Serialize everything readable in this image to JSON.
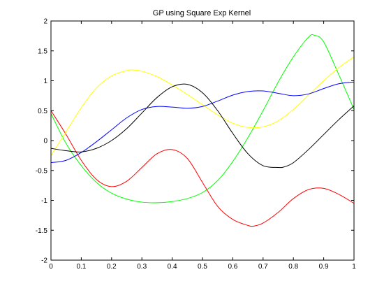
{
  "chart_data": {
    "type": "line",
    "title": "GP using Square Exp Kernel",
    "xlabel": "",
    "ylabel": "",
    "xlim": [
      0,
      1
    ],
    "ylim": [
      -2,
      2
    ],
    "xticks": [
      0,
      0.1,
      0.2,
      0.3,
      0.4,
      0.5,
      0.6,
      0.7,
      0.8,
      0.9,
      1
    ],
    "xtick_labels": [
      "0",
      "0.1",
      "0.2",
      "0.3",
      "0.4",
      "0.5",
      "0.6",
      "0.7",
      "0.8",
      "0.9",
      "1"
    ],
    "yticks": [
      -2,
      -1.5,
      -1,
      -0.5,
      0,
      0.5,
      1,
      1.5,
      2
    ],
    "ytick_labels": [
      "-2",
      "-1.5",
      "-1",
      "-0.5",
      "0",
      "0.5",
      "1",
      "1.5",
      "2"
    ],
    "grid": false,
    "legend": "none",
    "series": [
      {
        "color": "#00ff00",
        "x": [
          0,
          0.05,
          0.1,
          0.15,
          0.2,
          0.25,
          0.3,
          0.35,
          0.4,
          0.45,
          0.5,
          0.55,
          0.6,
          0.65,
          0.7,
          0.75,
          0.8,
          0.85,
          0.87,
          0.9,
          0.95,
          1
        ],
        "y": [
          0.45,
          -0.05,
          -0.42,
          -0.7,
          -0.88,
          -0.98,
          -1.03,
          -1.04,
          -1.02,
          -0.97,
          -0.87,
          -0.67,
          -0.35,
          0.05,
          0.5,
          0.98,
          1.4,
          1.73,
          1.76,
          1.65,
          1.1,
          0.52
        ]
      },
      {
        "color": "#ff0000",
        "x": [
          0,
          0.05,
          0.1,
          0.15,
          0.2,
          0.25,
          0.3,
          0.35,
          0.4,
          0.45,
          0.5,
          0.55,
          0.6,
          0.65,
          0.67,
          0.7,
          0.75,
          0.8,
          0.85,
          0.9,
          0.95,
          1
        ],
        "y": [
          0.5,
          0.1,
          -0.33,
          -0.65,
          -0.77,
          -0.68,
          -0.45,
          -0.22,
          -0.15,
          -0.3,
          -0.7,
          -1.1,
          -1.32,
          -1.42,
          -1.43,
          -1.38,
          -1.2,
          -0.97,
          -0.82,
          -0.8,
          -0.9,
          -1.05
        ]
      },
      {
        "color": "#ffff00",
        "x": [
          0,
          0.05,
          0.1,
          0.15,
          0.2,
          0.25,
          0.27,
          0.3,
          0.35,
          0.4,
          0.45,
          0.5,
          0.55,
          0.6,
          0.65,
          0.7,
          0.75,
          0.8,
          0.85,
          0.9,
          0.95,
          1
        ],
        "y": [
          -0.25,
          0.15,
          0.55,
          0.88,
          1.08,
          1.17,
          1.18,
          1.16,
          1.07,
          0.93,
          0.77,
          0.6,
          0.43,
          0.29,
          0.22,
          0.23,
          0.33,
          0.52,
          0.76,
          1.0,
          1.22,
          1.4
        ]
      },
      {
        "color": "#0000ff",
        "x": [
          0,
          0.05,
          0.1,
          0.15,
          0.2,
          0.25,
          0.3,
          0.35,
          0.4,
          0.45,
          0.5,
          0.55,
          0.6,
          0.65,
          0.7,
          0.75,
          0.8,
          0.85,
          0.9,
          0.95,
          1
        ],
        "y": [
          -0.37,
          -0.33,
          -0.2,
          -0.02,
          0.18,
          0.38,
          0.52,
          0.57,
          0.56,
          0.54,
          0.57,
          0.66,
          0.76,
          0.82,
          0.83,
          0.79,
          0.75,
          0.78,
          0.87,
          0.95,
          0.98
        ]
      },
      {
        "color": "#000000",
        "x": [
          0,
          0.05,
          0.1,
          0.15,
          0.2,
          0.25,
          0.3,
          0.35,
          0.4,
          0.45,
          0.5,
          0.55,
          0.6,
          0.65,
          0.7,
          0.75,
          0.77,
          0.8,
          0.85,
          0.9,
          0.95,
          1
        ],
        "y": [
          -0.13,
          -0.17,
          -0.19,
          -0.13,
          0.0,
          0.2,
          0.46,
          0.72,
          0.9,
          0.94,
          0.8,
          0.5,
          0.12,
          -0.22,
          -0.42,
          -0.45,
          -0.44,
          -0.37,
          -0.15,
          0.1,
          0.35,
          0.58
        ]
      }
    ]
  }
}
